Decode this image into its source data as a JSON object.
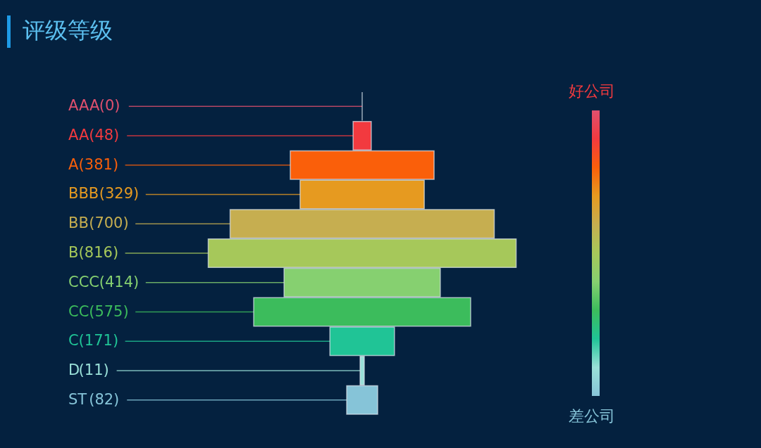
{
  "chart_data": {
    "type": "other",
    "title": "评级等级",
    "categories": [
      "AAA",
      "AA",
      "A",
      "BBB",
      "BB",
      "B",
      "CCC",
      "CC",
      "C",
      "D",
      "ST"
    ],
    "value_labels": [
      "(0)",
      "(48)",
      "(381)",
      "(329)",
      "(700)",
      "(816)",
      "(414)",
      "(575)",
      "(171)",
      "(11)",
      "(82)"
    ],
    "values": [
      0,
      48,
      381,
      329,
      700,
      816,
      414,
      575,
      171,
      11,
      82
    ],
    "colors": [
      "#e0506e",
      "#f23a3f",
      "#fa5f0a",
      "#e69a20",
      "#c6ae50",
      "#a6c85a",
      "#86d070",
      "#3cbc5c",
      "#20c496",
      "#9ae0d8",
      "#86c4d8"
    ],
    "annotations": [
      "好公司",
      "差公司"
    ]
  }
}
